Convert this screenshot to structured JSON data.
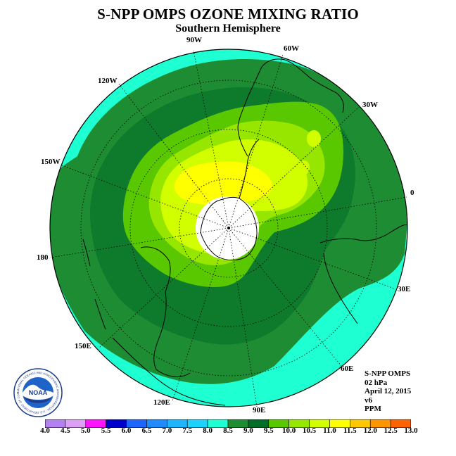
{
  "title": "S-NPP OMPS OZONE MIXING RATIO",
  "subtitle": "Southern Hemisphere",
  "longitude_labels": {
    "w90": "90W",
    "w60": "60W",
    "w30": "30W",
    "e0": "0",
    "e30": "30E",
    "e60": "60E",
    "e90": "90E",
    "e120": "120E",
    "e150": "150E",
    "e180": "180",
    "w150": "150W",
    "w120": "120W"
  },
  "info": {
    "instrument": "S-NPP OMPS",
    "pressure": "02 hPa",
    "date": "April 12, 2015",
    "version": "v6",
    "units": "PPM"
  },
  "logo": {
    "text": "NOAA",
    "ring_text": "NATIONAL OCEANIC AND ATMOSPHERIC ADMINISTRATION · U.S. DEPARTMENT OF COMMERCE"
  },
  "colorbar": {
    "ticks": [
      "4.0",
      "4.5",
      "5.0",
      "5.5",
      "6.0",
      "6.5",
      "7.0",
      "7.5",
      "8.0",
      "8.5",
      "9.0",
      "9.5",
      "10.0",
      "10.5",
      "11.0",
      "11.5",
      "12.0",
      "12.5",
      "13.0"
    ],
    "colors": [
      "#b482f0",
      "#dca0f5",
      "#ff14ff",
      "#0000cd",
      "#1e64ff",
      "#1e8cff",
      "#1eb4ff",
      "#1ed2ff",
      "#1effd2",
      "#1e8c32",
      "#006e28",
      "#5ac800",
      "#96e600",
      "#d2ff00",
      "#ffff00",
      "#ffc800",
      "#ff9600",
      "#ff6400",
      "#ff0000",
      "#c80000",
      "#8c5a32"
    ]
  },
  "legend_colors": {
    "c7_5": "#1effd2",
    "c8_0": "#1e8c32",
    "c8_5": "#0d7a2c",
    "c9_0": "#5ac800",
    "c9_5": "#96e600",
    "c10_0": "#d2ff00",
    "c10_5": "#ffff00",
    "hole": "#ffffff"
  }
}
